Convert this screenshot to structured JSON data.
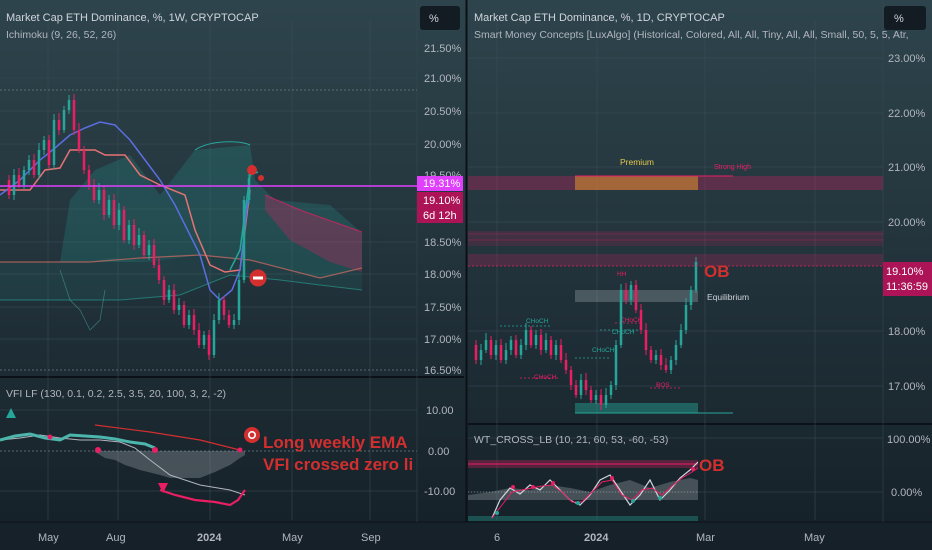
{
  "left_panel": {
    "title": "Market Cap ETH Dominance, %, 1W, CRYPTOCAP",
    "indicator": "Ichimoku (9, 26, 52, 26)",
    "scale_button": "%",
    "y_ticks": [
      "21.50%",
      "21.00%",
      "20.50%",
      "20.00%",
      "19.50%",
      "18.50%",
      "18.00%",
      "17.50%",
      "17.00%",
      "16.50%"
    ],
    "price_tag_1": "19.31%",
    "price_tag_2": "19.10%",
    "price_tag_countdown": "6d 12h",
    "sub": {
      "title": "VFI LF (130, 0.1, 0.2, 2.5, 3.5, 20, 100, 3, 2, -2)",
      "y_ticks": [
        "10.00",
        "0.00",
        "-10.00"
      ],
      "annotation_line_1": "Long weekly EMA",
      "annotation_line_2": "VFI crossed zero li"
    },
    "x_ticks": [
      "May",
      "Aug",
      "2024",
      "May",
      "Sep"
    ]
  },
  "right_panel": {
    "title": "Market Cap ETH Dominance, %, 1D, CRYPTOCAP",
    "indicator": "Smart Money Concepts [LuxAlgo] (Historical, Colored, All, All, Tiny, All, All, Small, 50, 5, 5, Atr,",
    "scale_button": "%",
    "y_ticks": [
      "23.00%",
      "22.00%",
      "21.00%",
      "20.00%",
      "18.00%",
      "17.00%"
    ],
    "price_tag": "19.10%",
    "price_countdown": "11:36:59",
    "zone_labels": {
      "premium": "Premium",
      "strong_high": "Strong High",
      "equilibrium": "Equilibrium"
    },
    "structure_labels": [
      "CHoCH",
      "CHoCH",
      "CHoCH",
      "CHoCH",
      "CHoCH",
      "BOS",
      "HH"
    ],
    "ob_label": "OB",
    "sub": {
      "title": "WT_CROSS_LB (10, 21, 60, 53, -60, -53)",
      "y_ticks": [
        "100.00%",
        "0.00%"
      ],
      "ob_label": "OB"
    },
    "x_ticks": [
      "6",
      "2024",
      "Mar",
      "May"
    ]
  },
  "colors": {
    "bull": "#26a69a",
    "bear": "#ef5350",
    "accent": "#e91e63",
    "annotation": "#d32f2f",
    "tenkan": "#5b6ee1",
    "kijun": "#e57373"
  }
}
